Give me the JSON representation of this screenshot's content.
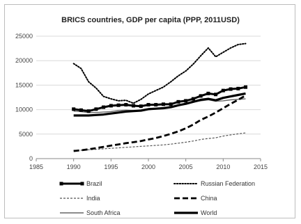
{
  "chart_data": {
    "type": "line",
    "title": "BRICS countries, GDP per capita (PPP, 2011USD)",
    "xlabel": "",
    "ylabel": "",
    "xlim": [
      1985,
      2015
    ],
    "ylim": [
      0,
      25000
    ],
    "xticks": [
      "1985",
      "1990",
      "1995",
      "2000",
      "2005",
      "2010",
      "2015"
    ],
    "yticks": [
      "0",
      "5000",
      "10000",
      "15000",
      "20000",
      "25000"
    ],
    "grid": "horizontal",
    "legend_position": "bottom",
    "x": [
      1990,
      1991,
      1992,
      1993,
      1994,
      1995,
      1996,
      1997,
      1998,
      1999,
      2000,
      2001,
      2002,
      2003,
      2004,
      2005,
      2006,
      2007,
      2008,
      2009,
      2010,
      2011,
      2012,
      2013
    ],
    "series": [
      {
        "name": "Brazil",
        "style": "solid-square-markers",
        "color": "#000000",
        "values": [
          10100,
          9900,
          9700,
          10100,
          10500,
          10800,
          10900,
          11000,
          10800,
          10700,
          11000,
          11000,
          11100,
          11100,
          11600,
          11800,
          12200,
          12800,
          13300,
          13100,
          13900,
          14200,
          14300,
          14600
        ]
      },
      {
        "name": "Russian Federation",
        "style": "dotted",
        "color": "#000000",
        "values": [
          19400,
          18400,
          15700,
          14400,
          12700,
          12200,
          11800,
          11900,
          11300,
          12100,
          13200,
          13900,
          14600,
          15700,
          16900,
          17900,
          19300,
          21000,
          22600,
          20800,
          21700,
          22600,
          23300,
          23500
        ]
      },
      {
        "name": "India",
        "style": "dashed-short",
        "color": "#555555",
        "values": [
          1700,
          1700,
          1800,
          1900,
          2000,
          2100,
          2200,
          2300,
          2400,
          2500,
          2600,
          2700,
          2800,
          2950,
          3150,
          3350,
          3600,
          3900,
          4100,
          4250,
          4600,
          4850,
          5050,
          5250
        ]
      },
      {
        "name": "China",
        "style": "dashed-long",
        "color": "#000000",
        "values": [
          1550,
          1700,
          1900,
          2150,
          2400,
          2650,
          2900,
          3150,
          3350,
          3600,
          3900,
          4200,
          4600,
          5050,
          5550,
          6200,
          6950,
          7900,
          8600,
          9400,
          10300,
          11200,
          12000,
          12900
        ]
      },
      {
        "name": "South Africa",
        "style": "solid-thin",
        "color": "#666666",
        "values": [
          9700,
          9600,
          9400,
          9400,
          9500,
          9600,
          9800,
          9900,
          9800,
          9800,
          10000,
          10100,
          10300,
          10500,
          10800,
          11200,
          11500,
          11800,
          12000,
          11700,
          11800,
          12000,
          12100,
          12200
        ]
      },
      {
        "name": "World",
        "style": "solid-thick",
        "color": "#000000",
        "values": [
          8800,
          8800,
          8800,
          8900,
          9000,
          9200,
          9400,
          9600,
          9700,
          9800,
          10100,
          10200,
          10300,
          10500,
          10900,
          11200,
          11600,
          12000,
          12200,
          11900,
          12400,
          12700,
          13000,
          13300
        ]
      }
    ]
  }
}
